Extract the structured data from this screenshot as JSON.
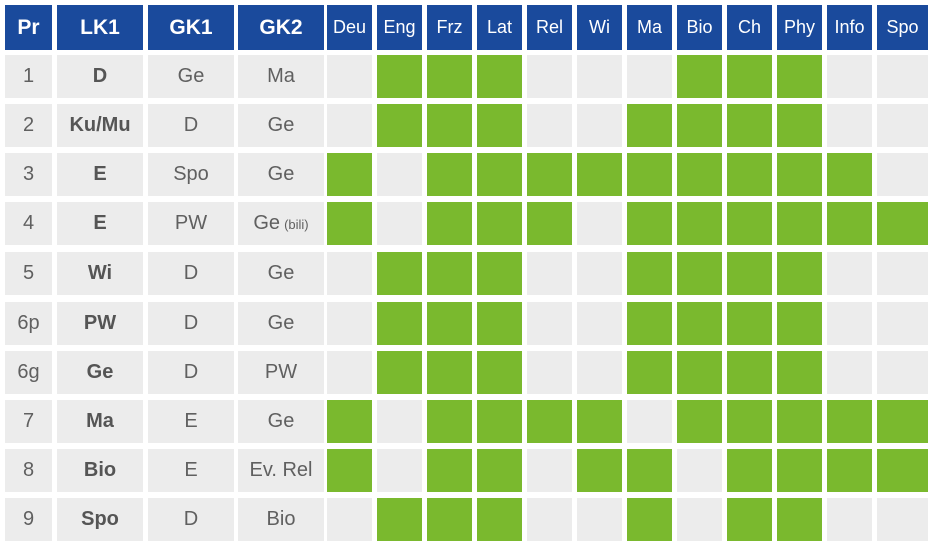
{
  "table": {
    "headers": [
      "Pr",
      "LK1",
      "GK1",
      "GK2",
      "Deu",
      "Eng",
      "Frz",
      "Lat",
      "Rel",
      "Wi",
      "Ma",
      "Bio",
      "Ch",
      "Phy",
      "Info",
      "Spo"
    ],
    "colors": {
      "header_bg": "#1a4a9c",
      "cell_bg": "#ececec",
      "mark": "#7ab92e"
    },
    "rows": [
      {
        "pr": "1",
        "lk1": "D",
        "gk1": "Ge",
        "gk2": "Ma",
        "gk2_suffix": "",
        "marks": [
          0,
          1,
          1,
          1,
          0,
          0,
          0,
          1,
          1,
          1,
          0,
          0
        ]
      },
      {
        "pr": "2",
        "lk1": "Ku/Mu",
        "gk1": "D",
        "gk2": "Ge",
        "gk2_suffix": "",
        "marks": [
          0,
          1,
          1,
          1,
          0,
          0,
          1,
          1,
          1,
          1,
          0,
          0
        ]
      },
      {
        "pr": "3",
        "lk1": "E",
        "gk1": "Spo",
        "gk2": "Ge",
        "gk2_suffix": "",
        "marks": [
          1,
          0,
          1,
          1,
          1,
          1,
          1,
          1,
          1,
          1,
          1,
          0
        ]
      },
      {
        "pr": "4",
        "lk1": "E",
        "gk1": "PW",
        "gk2": "Ge",
        "gk2_suffix": "(bili)",
        "marks": [
          1,
          0,
          1,
          1,
          1,
          0,
          1,
          1,
          1,
          1,
          1,
          1
        ]
      },
      {
        "pr": "5",
        "lk1": "Wi",
        "gk1": "D",
        "gk2": "Ge",
        "gk2_suffix": "",
        "marks": [
          0,
          1,
          1,
          1,
          0,
          0,
          1,
          1,
          1,
          1,
          0,
          0
        ]
      },
      {
        "pr": "6p",
        "lk1": "PW",
        "gk1": "D",
        "gk2": "Ge",
        "gk2_suffix": "",
        "marks": [
          0,
          1,
          1,
          1,
          0,
          0,
          1,
          1,
          1,
          1,
          0,
          0
        ]
      },
      {
        "pr": "6g",
        "lk1": "Ge",
        "gk1": "D",
        "gk2": "PW",
        "gk2_suffix": "",
        "marks": [
          0,
          1,
          1,
          1,
          0,
          0,
          1,
          1,
          1,
          1,
          0,
          0
        ]
      },
      {
        "pr": "7",
        "lk1": "Ma",
        "gk1": "E",
        "gk2": "Ge",
        "gk2_suffix": "",
        "marks": [
          1,
          0,
          1,
          1,
          1,
          1,
          0,
          1,
          1,
          1,
          1,
          1
        ]
      },
      {
        "pr": "8",
        "lk1": "Bio",
        "gk1": "E",
        "gk2": "Ev. Rel",
        "gk2_suffix": "",
        "marks": [
          1,
          0,
          1,
          1,
          0,
          1,
          1,
          0,
          1,
          1,
          1,
          1
        ]
      },
      {
        "pr": "9",
        "lk1": "Spo",
        "gk1": "D",
        "gk2": "Bio",
        "gk2_suffix": "",
        "marks": [
          0,
          1,
          1,
          1,
          0,
          0,
          1,
          0,
          1,
          1,
          0,
          0
        ]
      }
    ]
  }
}
